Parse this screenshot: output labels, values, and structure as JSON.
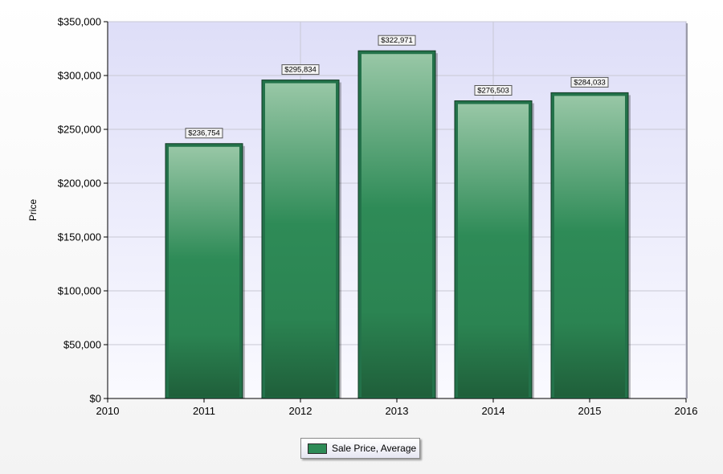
{
  "chart_data": {
    "type": "bar",
    "title": "",
    "xlabel": "",
    "ylabel": "Price",
    "categories": [
      "2011",
      "2012",
      "2013",
      "2014",
      "2015"
    ],
    "x": [
      2011,
      2012,
      2013,
      2014,
      2015
    ],
    "xlim": [
      2010,
      2016
    ],
    "xticks": [
      "2010",
      "2011",
      "2012",
      "2013",
      "2014",
      "2015",
      "2016"
    ],
    "ylim": [
      0,
      350000
    ],
    "yticks": [
      "$0",
      "$50,000",
      "$100,000",
      "$150,000",
      "$200,000",
      "$250,000",
      "$300,000",
      "$350,000"
    ],
    "series": [
      {
        "name": "Sale Price, Average",
        "values": [
          236754,
          295834,
          322971,
          276503,
          284033
        ],
        "labels": [
          "$236,754",
          "$295,834",
          "$322,971",
          "$276,503",
          "$284,033"
        ],
        "color": "#2e8b57"
      }
    ],
    "grid": true,
    "legend_position": "bottom-center"
  }
}
